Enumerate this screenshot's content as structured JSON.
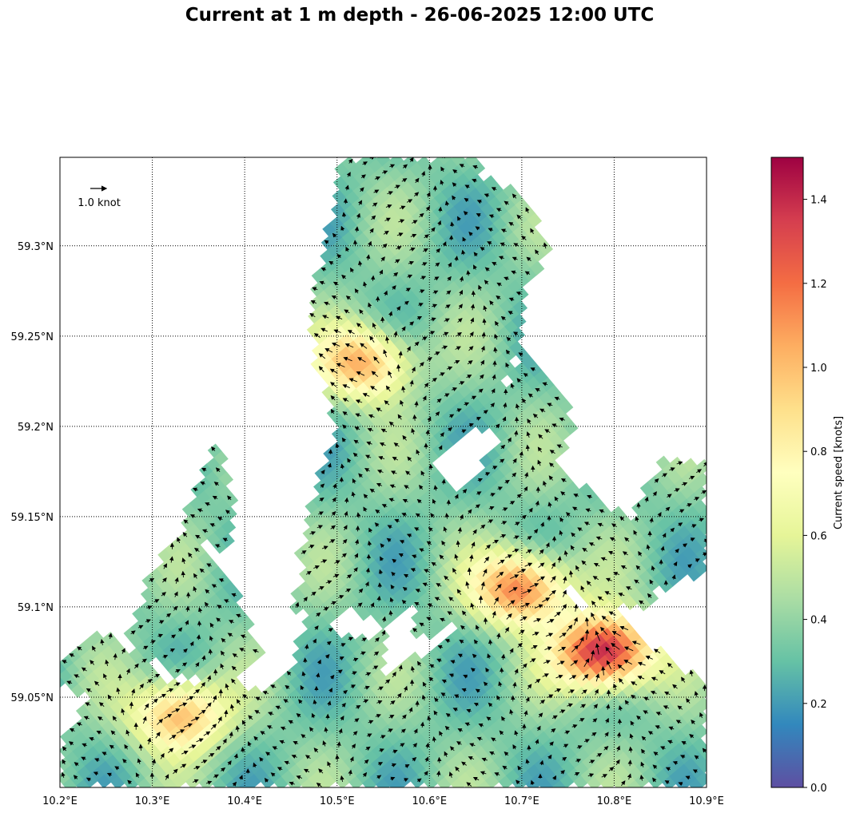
{
  "title": "Current at 1 m depth - 26-06-2025 12:00 UTC",
  "map": {
    "lon_range": [
      10.2,
      10.9
    ],
    "lat_range": [
      59.0,
      59.349
    ],
    "lon_ticks": [
      "10.2°E",
      "10.3°E",
      "10.4°E",
      "10.5°E",
      "10.6°E",
      "10.7°E",
      "10.8°E",
      "10.9°E"
    ],
    "lon_tick_values": [
      10.2,
      10.3,
      10.4,
      10.5,
      10.6,
      10.7,
      10.8,
      10.9
    ],
    "lat_ticks": [
      "59.05°N",
      "59.1°N",
      "59.15°N",
      "59.2°N",
      "59.25°N",
      "59.3°N"
    ],
    "lat_tick_values": [
      59.05,
      59.1,
      59.15,
      59.2,
      59.25,
      59.3
    ],
    "gridlines": true,
    "gridline_style": "dotted",
    "quiver_key_label": "1.0 knot",
    "quiver_key_value": 1.0,
    "colormap": "Spectral_r"
  },
  "colorbar": {
    "label": "Current speed [knots]",
    "range": [
      0.0,
      1.5
    ],
    "ticks": [
      "0.0",
      "0.2",
      "0.4",
      "0.6",
      "0.8",
      "1.0",
      "1.2",
      "1.4"
    ],
    "tick_values": [
      0.0,
      0.2,
      0.4,
      0.6,
      0.8,
      1.0,
      1.2,
      1.4
    ]
  },
  "features": {
    "hotspots": [
      {
        "name": "strong flow east of 10.75°E",
        "lon": 10.79,
        "lat": 59.075,
        "speed": 1.45
      },
      {
        "name": "strong flow near 10.7°E",
        "lon": 10.7,
        "lat": 59.11,
        "speed": 1.15
      },
      {
        "name": "flow near 10.53°E",
        "lon": 10.53,
        "lat": 59.235,
        "speed": 1.0
      },
      {
        "name": "flow southwest",
        "lon": 10.33,
        "lat": 59.04,
        "speed": 1.0
      }
    ]
  }
}
